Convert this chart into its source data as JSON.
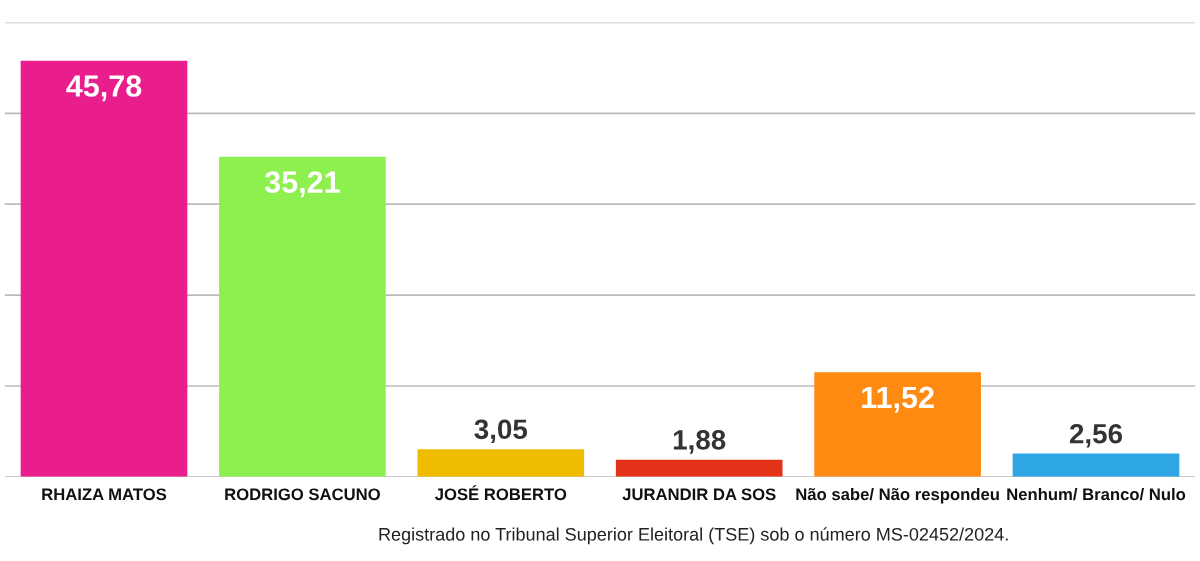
{
  "chart_data": {
    "type": "bar",
    "categories": [
      "RHAIZA MATOS",
      "RODRIGO SACUNO",
      "JOSÉ ROBERTO",
      "JURANDIR DA SOS",
      "Não sabe/ Não respondeu",
      "Nenhum/ Branco/ Nulo"
    ],
    "values": [
      45.78,
      35.21,
      3.05,
      1.88,
      11.52,
      2.56
    ],
    "value_labels": [
      "45,78",
      "35,21",
      "3,05",
      "1,88",
      "11,52",
      "2,56"
    ],
    "colors": [
      "#e91e8c",
      "#8ef04f",
      "#f0bc00",
      "#e3311a",
      "#ff8a12",
      "#2ea6e6"
    ],
    "ylim": [
      0,
      50
    ],
    "yticks": [
      {
        "value": 0,
        "label": null
      },
      {
        "value": 10,
        "label": null
      },
      {
        "value": 20,
        "label": null
      },
      {
        "value": 30,
        "label": null
      },
      {
        "value": 40,
        "label": null
      },
      {
        "value": 50,
        "label": null
      }
    ],
    "grid": "y",
    "tick_labels": "x",
    "annotations": [
      "Registrado no Tribunal Superior Eleitoral (TSE) sob o número MS-02452/2024."
    ]
  }
}
